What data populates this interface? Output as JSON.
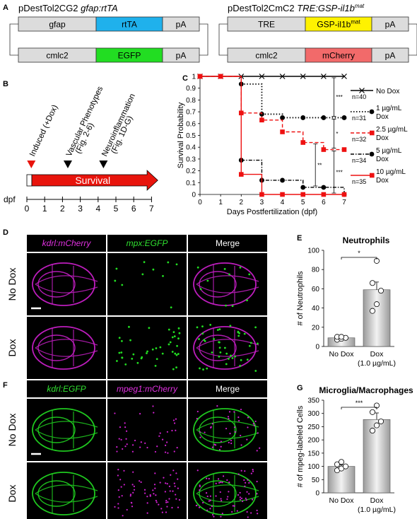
{
  "panel_letters": {
    "a": "A",
    "b": "B",
    "c": "C",
    "d": "D",
    "e": "E",
    "f": "F",
    "g": "G"
  },
  "construct_left": {
    "title_plain": "pDestTol2CG2 ",
    "title_italic": "gfap:rtTA",
    "row1": [
      {
        "label": "gfap",
        "color": "#dcdcdc"
      },
      {
        "label": "rtTA",
        "color": "#1fb1ec"
      },
      {
        "label": "pA",
        "color": "#dcdcdc"
      }
    ],
    "row2": [
      {
        "label": "cmlc2",
        "color": "#dcdcdc"
      },
      {
        "label": "EGFP",
        "color": "#22dd22"
      },
      {
        "label": "pA",
        "color": "#dcdcdc"
      }
    ]
  },
  "construct_right": {
    "title_plain": "pDestTol2CmC2 ",
    "title_italic": "TRE:GSP-il1b",
    "title_sup": "mat",
    "row1": [
      {
        "label": "TRE",
        "color": "#dcdcdc"
      },
      {
        "label": "GSP-il1b",
        "sup": "mat",
        "color": "#fff200"
      },
      {
        "label": "pA",
        "color": "#dcdcdc"
      }
    ],
    "row2": [
      {
        "label": "cmlc2",
        "color": "#dcdcdc"
      },
      {
        "label": "mCherry",
        "color": "#f26a6a"
      },
      {
        "label": "pA",
        "color": "#dcdcdc"
      }
    ]
  },
  "timeline": {
    "axis_label": "dpf",
    "ticks": [
      "0",
      "1",
      "2",
      "3",
      "4",
      "5",
      "6",
      "7"
    ],
    "bar_label": "Survival",
    "events": [
      {
        "label": "Induced (+Dox)",
        "marker": "red-triangle",
        "day": 0.25
      },
      {
        "label": "Vascular Phenotypes",
        "sub": "(Fig. 2-6)",
        "marker": "black-triangle",
        "day": 2.3
      },
      {
        "label": "Neuroinflammation",
        "sub": "(Fig. 1D-G)",
        "marker": "black-triangle",
        "day": 4.3
      }
    ]
  },
  "chart_data": [
    {
      "panel": "C",
      "type": "line",
      "chart_kind": "Kaplan-Meier step",
      "xlabel": "Days Postfertilization (dpf)",
      "ylabel": "Survival Probability",
      "xlim": [
        0,
        7
      ],
      "ylim": [
        0,
        1
      ],
      "xticks": [
        "0",
        "1",
        "2",
        "3",
        "4",
        "5",
        "6",
        "7"
      ],
      "yticks": [
        "0",
        "0.1",
        "0.2",
        "0.3",
        "0.4",
        "0.5",
        "0.6",
        "0.7",
        "0.8",
        "0.9",
        "1"
      ],
      "series": [
        {
          "name": "No Dox",
          "n": "n=40",
          "style": "solid",
          "marker": "x",
          "color": "#000000",
          "x": [
            0,
            1,
            2,
            3,
            4,
            5,
            6,
            7
          ],
          "y": [
            1,
            1,
            1,
            1,
            1,
            1,
            1,
            1
          ]
        },
        {
          "name": "1 µg/mL Dox",
          "n": "n=31",
          "style": "dotted",
          "marker": "circle",
          "color": "#000000",
          "x": [
            2,
            3,
            4,
            5,
            6,
            7
          ],
          "y": [
            0.935,
            0.68,
            0.65,
            0.65,
            0.65,
            0.65
          ]
        },
        {
          "name": "2.5 µg/mL Dox",
          "n": "n=32",
          "style": "dashed",
          "marker": "square",
          "color": "#ee1111",
          "x": [
            0,
            1,
            2,
            3,
            4,
            5,
            6,
            7
          ],
          "y": [
            1,
            1,
            0.69,
            0.63,
            0.53,
            0.44,
            0.38,
            0.38
          ]
        },
        {
          "name": "5 µg/mL Dox",
          "n": "n=34",
          "style": "dashdot",
          "marker": "circle",
          "color": "#000000",
          "x": [
            2,
            3,
            4,
            5,
            6,
            7
          ],
          "y": [
            0.29,
            0.12,
            0.12,
            0.06,
            0.06,
            0.0
          ]
        },
        {
          "name": "10 µg/mL Dox",
          "n": "n=35",
          "style": "solid",
          "marker": "square",
          "color": "#ee1111",
          "x": [
            0,
            1,
            2,
            3,
            4,
            5,
            6,
            7
          ],
          "y": [
            1,
            1,
            0.17,
            0,
            0,
            0,
            0,
            0
          ]
        }
      ],
      "significance": [
        "***",
        "*",
        "*",
        "**",
        "***"
      ]
    },
    {
      "panel": "E",
      "type": "bar",
      "title": "Neutrophils",
      "ylabel": "# of Neutrophils",
      "categories": [
        "No Dox",
        "Dox"
      ],
      "category_sub": [
        "",
        "(1.0 µg/mL)"
      ],
      "values": [
        9,
        59
      ],
      "errors": [
        1,
        8
      ],
      "points": [
        [
          7,
          8,
          9,
          10,
          10
        ],
        [
          37,
          44,
          58,
          66,
          89
        ]
      ],
      "ylim": [
        0,
        100
      ],
      "yticks": [
        "0",
        "20",
        "40",
        "60",
        "80",
        "100"
      ],
      "significance": "*"
    },
    {
      "panel": "G",
      "type": "bar",
      "title": "Microglia/Macrophages",
      "ylabel": "# of mpeg-labeled Cells",
      "categories": [
        "No Dox",
        "Dox"
      ],
      "category_sub": [
        "",
        "(1.0 µg/mL)"
      ],
      "values": [
        100,
        277
      ],
      "errors": [
        6,
        25
      ],
      "points": [
        [
          85,
          92,
          100,
          108,
          117
        ],
        [
          235,
          255,
          270,
          305,
          330
        ]
      ],
      "ylim": [
        0,
        350
      ],
      "yticks": [
        "0",
        "50",
        "100",
        "150",
        "200",
        "250",
        "300",
        "350"
      ],
      "significance": "***"
    }
  ],
  "panel_d": {
    "headers": [
      "kdrl:mCherry",
      "mpx:EGFP",
      "Merge"
    ],
    "header_colors": [
      "#e030e0",
      "#30e030",
      "#ffffff"
    ],
    "rows": [
      "No Dox",
      "Dox"
    ]
  },
  "panel_f": {
    "headers": [
      "kdrl:EGFP",
      "mpeg1:mCherry",
      "Merge"
    ],
    "header_colors": [
      "#30e030",
      "#e030e0",
      "#ffffff"
    ],
    "rows": [
      "No Dox",
      "Dox"
    ]
  }
}
